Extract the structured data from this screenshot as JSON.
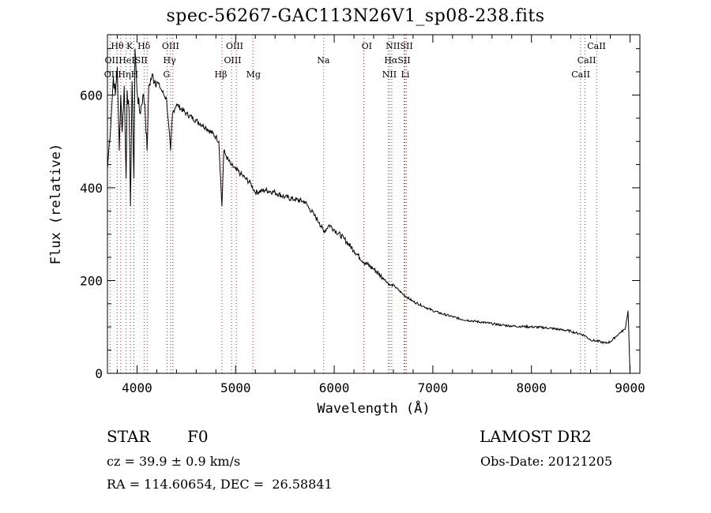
{
  "header": {
    "title": "spec-56267-GAC113N26V1_sp08-238.fits"
  },
  "info": {
    "class_label": "STAR",
    "subclass": "F0",
    "survey": "LAMOST DR2",
    "velocity": "cz = 39.9 ± 0.9 km/s",
    "obs_date": "Obs-Date: 20121205",
    "coords": "RA = 114.60654, DEC =  26.58841"
  },
  "chart_data": {
    "type": "line",
    "title": "spec-56267-GAC113N26V1_sp08-238.fits",
    "xlabel": "Wavelength (Å)",
    "ylabel": "Flux (relative)",
    "xlim": [
      3700,
      9100
    ],
    "ylim": [
      0,
      730
    ],
    "xticks": [
      4000,
      5000,
      6000,
      7000,
      8000,
      9000
    ],
    "yticks": [
      0,
      200,
      400,
      600
    ],
    "grid": false,
    "series": [
      {
        "x": [
          3700,
          3720,
          3740,
          3760,
          3780,
          3800,
          3820,
          3835,
          3850,
          3870,
          3889,
          3900,
          3920,
          3933,
          3950,
          3968,
          3980,
          4000,
          4030,
          4060,
          4080,
          4102,
          4120,
          4150,
          4200,
          4250,
          4300,
          4340,
          4360,
          4400,
          4500,
          4600,
          4700,
          4800,
          4830,
          4861,
          4880,
          4900,
          4950,
          5000,
          5050,
          5100,
          5150,
          5200,
          5300,
          5400,
          5500,
          5600,
          5700,
          5750,
          5800,
          5850,
          5893,
          5950,
          6000,
          6100,
          6200,
          6300,
          6400,
          6500,
          6563,
          6600,
          6700,
          6800,
          6900,
          7000,
          7100,
          7200,
          7300,
          7400,
          7500,
          7600,
          7700,
          7800,
          7900,
          8000,
          8100,
          8200,
          8300,
          8400,
          8450,
          8500,
          8550,
          8600,
          8650,
          8700,
          8750,
          8800,
          8850,
          8900,
          8950,
          8980,
          9000
        ],
        "y": [
          440,
          500,
          560,
          640,
          600,
          660,
          480,
          600,
          520,
          620,
          420,
          610,
          560,
          360,
          630,
          420,
          700,
          610,
          560,
          600,
          580,
          480,
          620,
          640,
          630,
          610,
          590,
          480,
          560,
          580,
          560,
          545,
          530,
          510,
          500,
          360,
          480,
          470,
          450,
          440,
          430,
          420,
          410,
          390,
          395,
          390,
          380,
          375,
          370,
          355,
          340,
          325,
          305,
          320,
          310,
          290,
          265,
          240,
          225,
          205,
          190,
          190,
          170,
          155,
          145,
          135,
          128,
          122,
          116,
          113,
          110,
          107,
          104,
          102,
          101,
          100,
          99,
          97,
          94,
          91,
          87,
          85,
          80,
          72,
          70,
          68,
          65,
          68,
          78,
          88,
          95,
          135,
          0
        ]
      }
    ],
    "lines_red": [
      {
        "name": "OII",
        "x": 3727
      },
      {
        "name": "Hη",
        "x": 3835
      },
      {
        "name": "K",
        "x": 3934
      },
      {
        "name": "Hδ",
        "x": 4102
      },
      {
        "name": "OIII",
        "x": 4363
      },
      {
        "name": "Hβ",
        "x": 4861
      },
      {
        "name": "OIII",
        "x": 4959
      },
      {
        "name": "OIII",
        "x": 5007
      },
      {
        "name": "Mg",
        "x": 5175
      },
      {
        "name": "OI",
        "x": 6300
      },
      {
        "name": "NII",
        "x": 6548
      },
      {
        "name": "Hα",
        "x": 6563
      },
      {
        "name": "NII",
        "x": 6583
      },
      {
        "name": "SII",
        "x": 6716
      },
      {
        "name": "SII",
        "x": 6731
      },
      {
        "name": "CaII",
        "x": 8662
      }
    ],
    "lines_black": [
      {
        "name": "Hθ",
        "x": 3798
      },
      {
        "name": "HeI",
        "x": 3889
      },
      {
        "name": "H",
        "x": 3968
      },
      {
        "name": "SII",
        "x": 4072
      },
      {
        "name": "Hγ",
        "x": 4340
      },
      {
        "name": "G",
        "x": 4305
      },
      {
        "name": "Na",
        "x": 5893
      },
      {
        "name": "Li",
        "x": 6708
      },
      {
        "name": "CaII",
        "x": 8498
      },
      {
        "name": "CaII",
        "x": 8542
      }
    ],
    "line_labels": [
      {
        "text": "Hθ",
        "row": 1,
        "x": 3800
      },
      {
        "text": "K",
        "row": 1,
        "x": 3925
      },
      {
        "text": "Hδ",
        "row": 1,
        "x": 4070
      },
      {
        "text": "OIII",
        "row": 1,
        "x": 4340
      },
      {
        "text": "OIII",
        "row": 1,
        "x": 4990
      },
      {
        "text": "OI",
        "row": 1,
        "x": 6330
      },
      {
        "text": "NIISII",
        "row": 1,
        "x": 6660
      },
      {
        "text": "CaII",
        "row": 1,
        "x": 8660
      },
      {
        "text": "OIIHeISII",
        "row": 2,
        "x": 3890
      },
      {
        "text": "Hγ",
        "row": 2,
        "x": 4330
      },
      {
        "text": "OIII",
        "row": 2,
        "x": 4970
      },
      {
        "text": "Na",
        "row": 2,
        "x": 5890
      },
      {
        "text": "HαSII",
        "row": 2,
        "x": 6640
      },
      {
        "text": "CaII",
        "row": 2,
        "x": 8560
      },
      {
        "text": "OIIHηH",
        "row": 3,
        "x": 3840
      },
      {
        "text": "G",
        "row": 3,
        "x": 4300
      },
      {
        "text": "Hβ",
        "row": 3,
        "x": 4850
      },
      {
        "text": "Mg",
        "row": 3,
        "x": 5180
      },
      {
        "text": "NII",
        "row": 3,
        "x": 6560
      },
      {
        "text": "Li",
        "row": 3,
        "x": 6720
      },
      {
        "text": "CaII",
        "row": 3,
        "x": 8500
      }
    ]
  }
}
